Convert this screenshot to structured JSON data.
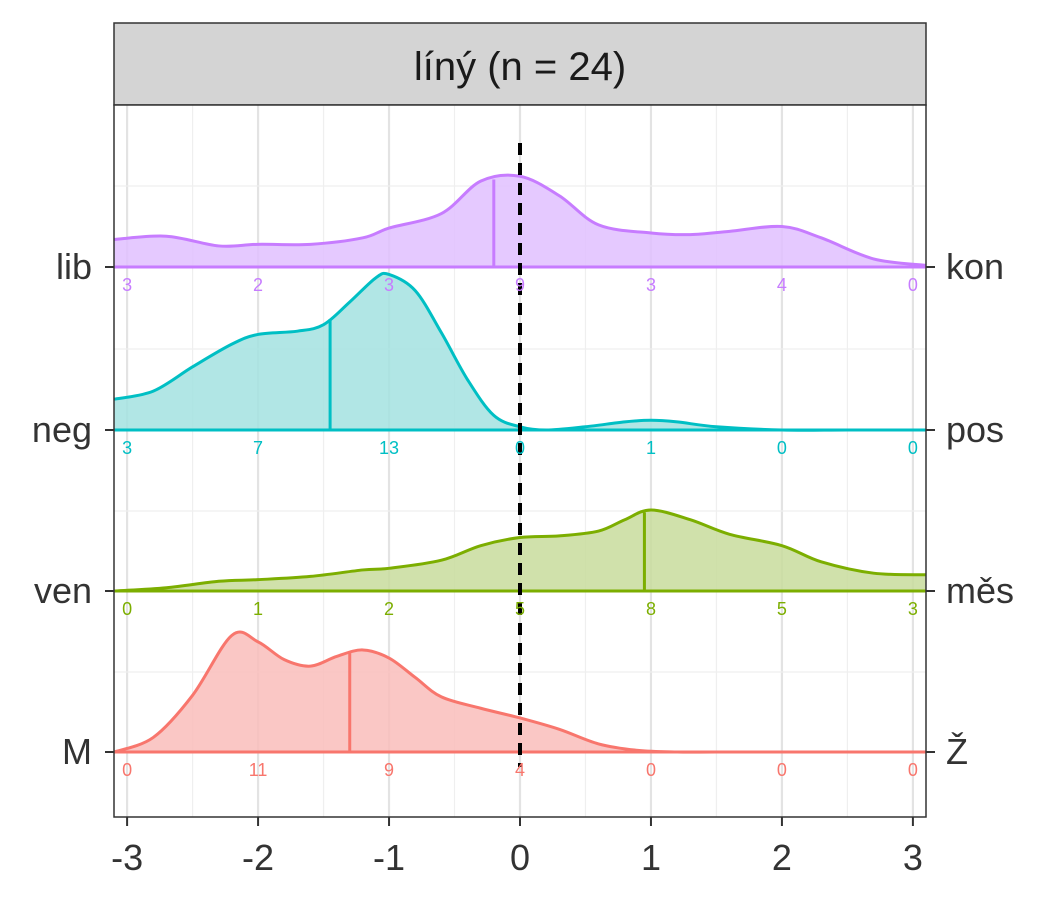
{
  "chart_data": {
    "type": "area",
    "title": "líný (n = 24)",
    "xlim": [
      -3.1,
      3.1
    ],
    "x_ticks": [
      -3,
      -2,
      -1,
      0,
      1,
      2,
      3
    ],
    "x_tick_labels": [
      "-3",
      "-2",
      "-1",
      "0",
      "1",
      "2",
      "3"
    ],
    "count_positions": [
      -3,
      -2,
      -1,
      0,
      1,
      2,
      3
    ],
    "reference_line_x": 0,
    "grid": true,
    "legend": "none",
    "rows": [
      {
        "left_label": "lib",
        "right_label": "kon",
        "color": "#C77CFF",
        "fill": "#E0BFFF",
        "mean": -0.2,
        "counts": [
          "3",
          "2",
          "3",
          "9",
          "3",
          "4",
          "0"
        ],
        "density_x": [
          -3.1,
          -2.7,
          -2.3,
          -2.0,
          -1.6,
          -1.2,
          -1.0,
          -0.6,
          -0.3,
          0.0,
          0.3,
          0.6,
          1.0,
          1.3,
          1.6,
          2.0,
          2.3,
          2.7,
          3.1
        ],
        "density_y": [
          0.17,
          0.19,
          0.13,
          0.14,
          0.14,
          0.18,
          0.24,
          0.33,
          0.53,
          0.56,
          0.44,
          0.26,
          0.21,
          0.2,
          0.22,
          0.25,
          0.18,
          0.05,
          0.01
        ]
      },
      {
        "left_label": "neg",
        "right_label": "pos",
        "color": "#00BFC4",
        "fill": "#A3E2E0",
        "mean": -1.45,
        "counts": [
          "3",
          "7",
          "13",
          "0",
          "1",
          "0",
          "0"
        ],
        "density_x": [
          -3.1,
          -2.8,
          -2.5,
          -2.2,
          -2.0,
          -1.7,
          -1.5,
          -1.3,
          -1.1,
          -1.0,
          -0.8,
          -0.6,
          -0.4,
          -0.2,
          0.0,
          0.2,
          0.5,
          0.8,
          1.0,
          1.2,
          1.5,
          2.0,
          2.5,
          3.1
        ],
        "density_y": [
          0.19,
          0.24,
          0.39,
          0.53,
          0.59,
          0.61,
          0.65,
          0.79,
          0.94,
          0.96,
          0.86,
          0.6,
          0.31,
          0.09,
          0.02,
          0.0,
          0.02,
          0.05,
          0.06,
          0.05,
          0.02,
          0.0,
          0.0,
          0.0
        ]
      },
      {
        "left_label": "ven",
        "right_label": "měs",
        "color": "#7CAE00",
        "fill": "#C8DC9C",
        "mean": 0.95,
        "counts": [
          "0",
          "1",
          "2",
          "5",
          "8",
          "5",
          "3"
        ],
        "density_x": [
          -3.1,
          -2.7,
          -2.3,
          -2.0,
          -1.6,
          -1.2,
          -1.0,
          -0.6,
          -0.3,
          0.0,
          0.3,
          0.6,
          0.8,
          1.0,
          1.3,
          1.6,
          2.0,
          2.3,
          2.7,
          3.1
        ],
        "density_y": [
          0.0,
          0.02,
          0.06,
          0.07,
          0.09,
          0.13,
          0.14,
          0.19,
          0.28,
          0.33,
          0.34,
          0.37,
          0.44,
          0.5,
          0.44,
          0.35,
          0.28,
          0.18,
          0.11,
          0.1
        ]
      },
      {
        "left_label": "M",
        "right_label": "Ž",
        "color": "#F8766D",
        "fill": "#F9BDBB",
        "mean": -1.3,
        "counts": [
          "0",
          "11",
          "9",
          "4",
          "0",
          "0",
          "0"
        ],
        "density_x": [
          -3.1,
          -2.8,
          -2.5,
          -2.2,
          -2.0,
          -1.8,
          -1.6,
          -1.4,
          -1.2,
          -1.0,
          -0.8,
          -0.6,
          -0.3,
          0.0,
          0.3,
          0.6,
          0.9,
          1.2,
          1.5,
          2.0,
          3.1
        ],
        "density_y": [
          0.0,
          0.09,
          0.35,
          0.72,
          0.68,
          0.57,
          0.53,
          0.59,
          0.63,
          0.58,
          0.46,
          0.34,
          0.27,
          0.21,
          0.14,
          0.05,
          0.01,
          0.0,
          0.0,
          0.0,
          0.0
        ]
      }
    ]
  }
}
